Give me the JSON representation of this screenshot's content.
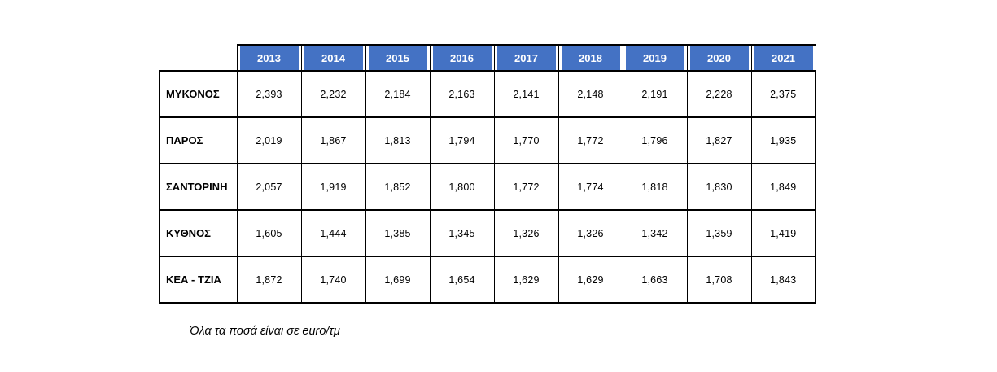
{
  "table": {
    "years": [
      "2013",
      "2014",
      "2015",
      "2016",
      "2017",
      "2018",
      "2019",
      "2020",
      "2021"
    ],
    "rows": [
      {
        "label": "ΜΥΚΟΝΟΣ",
        "values": [
          "2,393",
          "2,232",
          "2,184",
          "2,163",
          "2,141",
          "2,148",
          "2,191",
          "2,228",
          "2,375"
        ]
      },
      {
        "label": "ΠΑΡΟΣ",
        "values": [
          "2,019",
          "1,867",
          "1,813",
          "1,794",
          "1,770",
          "1,772",
          "1,796",
          "1,827",
          "1,935"
        ]
      },
      {
        "label": "ΣΑΝΤΟΡΙΝΗ",
        "values": [
          "2,057",
          "1,919",
          "1,852",
          "1,800",
          "1,772",
          "1,774",
          "1,818",
          "1,830",
          "1,849"
        ]
      },
      {
        "label": "ΚΥΘΝΟΣ",
        "values": [
          "1,605",
          "1,444",
          "1,385",
          "1,345",
          "1,326",
          "1,326",
          "1,342",
          "1,359",
          "1,419"
        ]
      },
      {
        "label": "ΚΕΑ - ΤΖΙΑ",
        "values": [
          "1,872",
          "1,740",
          "1,699",
          "1,654",
          "1,629",
          "1,629",
          "1,663",
          "1,708",
          "1,843"
        ]
      }
    ],
    "note": "Όλα τα ποσά είναι σε euro/τμ"
  },
  "colors": {
    "header_bg": "#4472C4",
    "header_text": "#FFFFFF",
    "border": "#000000",
    "body_bg": "#FFFFFF"
  },
  "chart_data": {
    "type": "table",
    "title": "",
    "columns": [
      "2013",
      "2014",
      "2015",
      "2016",
      "2017",
      "2018",
      "2019",
      "2020",
      "2021"
    ],
    "rows": [
      {
        "label": "ΜΥΚΟΝΟΣ",
        "values": [
          2393,
          2232,
          2184,
          2163,
          2141,
          2148,
          2191,
          2228,
          2375
        ]
      },
      {
        "label": "ΠΑΡΟΣ",
        "values": [
          2019,
          1867,
          1813,
          1794,
          1770,
          1772,
          1796,
          1827,
          1935
        ]
      },
      {
        "label": "ΣΑΝΤΟΡΙΝΗ",
        "values": [
          2057,
          1919,
          1852,
          1800,
          1772,
          1774,
          1818,
          1830,
          1849
        ]
      },
      {
        "label": "ΚΥΘΝΟΣ",
        "values": [
          1605,
          1444,
          1385,
          1345,
          1326,
          1326,
          1342,
          1359,
          1419
        ]
      },
      {
        "label": "ΚΕΑ - ΤΖΙΑ",
        "values": [
          1872,
          1740,
          1699,
          1654,
          1629,
          1629,
          1663,
          1708,
          1843
        ]
      }
    ],
    "units": "euro/τμ",
    "note": "Όλα τα ποσά είναι σε euro/τμ"
  }
}
